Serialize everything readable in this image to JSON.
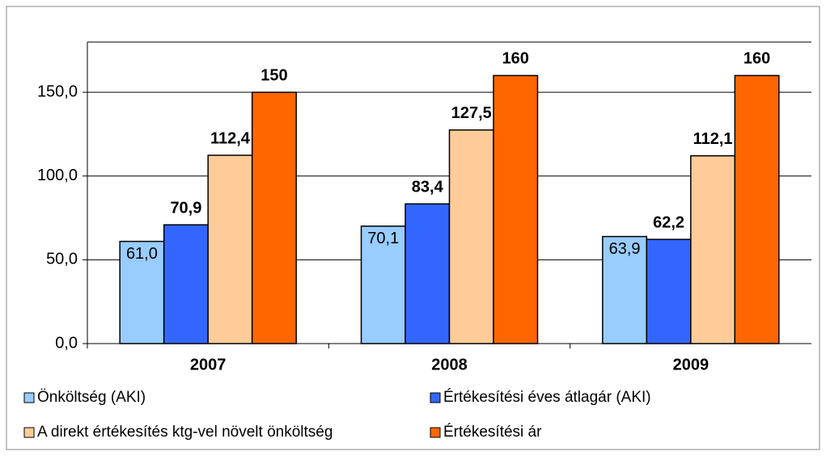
{
  "chart_data": {
    "type": "bar",
    "categories": [
      "2007",
      "2008",
      "2009"
    ],
    "series": [
      {
        "name": "Önköltség (AKI)",
        "color": "#99ccff",
        "values": [
          61.0,
          70.1,
          63.9
        ],
        "value_labels": [
          "61,0",
          "70,1",
          "63,9"
        ]
      },
      {
        "name": "Értékesítési éves átlagár (AKI)",
        "color": "#3366ff",
        "values": [
          70.9,
          83.4,
          62.2
        ],
        "value_labels": [
          "70,9",
          "83,4",
          "62,2"
        ]
      },
      {
        "name": "A direkt értékesítés ktg-vel növelt önköltség",
        "color": "#ffcc99",
        "values": [
          112.4,
          127.5,
          112.1
        ],
        "value_labels": [
          "112,4",
          "127,5",
          "112,1"
        ]
      },
      {
        "name": "Értékesítési ár",
        "color": "#ff6600",
        "values": [
          150,
          160,
          160
        ],
        "value_labels": [
          "150",
          "160",
          "160"
        ]
      }
    ],
    "ylim": [
      0,
      180
    ],
    "yticks": [
      {
        "value": 0,
        "label": "0,0"
      },
      {
        "value": 50,
        "label": "50,0"
      },
      {
        "value": 100,
        "label": "100,0"
      },
      {
        "value": 150,
        "label": "150,0"
      }
    ],
    "grid": true
  }
}
